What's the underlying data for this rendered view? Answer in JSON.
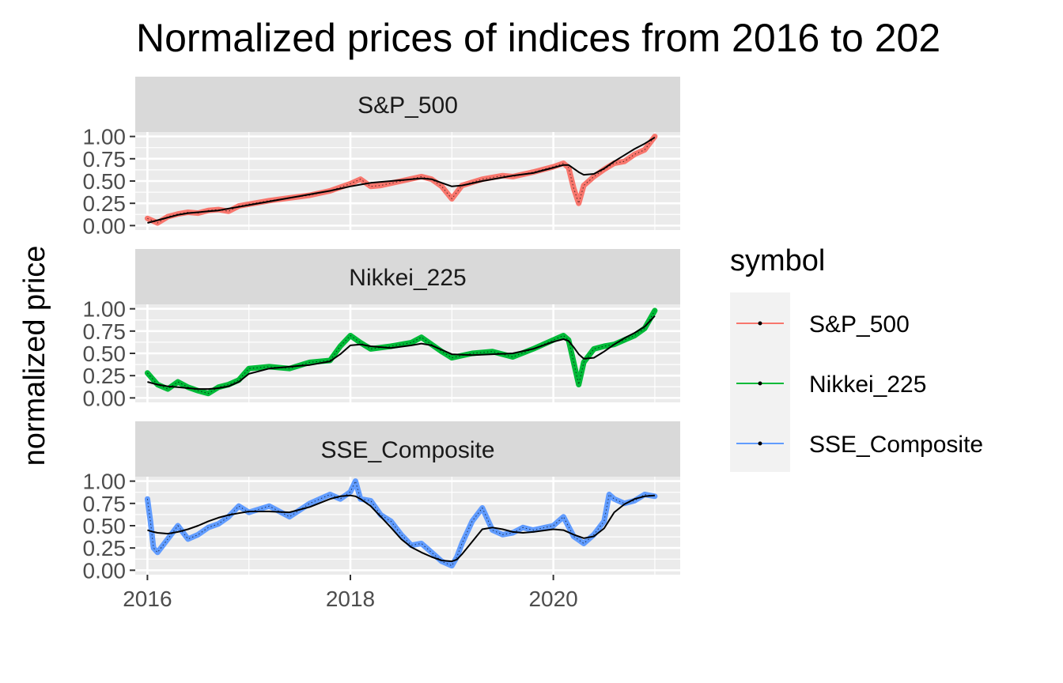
{
  "chart_data": {
    "type": "line",
    "title": "Normalized prices of indices from 2016 to 202",
    "ylabel": "normalized price",
    "xlabel": "",
    "xlim": [
      2015.88,
      2021.25
    ],
    "ylim": [
      -0.05,
      1.05
    ],
    "x_ticks": [
      2016,
      2018,
      2020
    ],
    "x_tick_labels": [
      "2016",
      "2018",
      "2020"
    ],
    "y_ticks": [
      0,
      0.25,
      0.5,
      0.75,
      1.0
    ],
    "y_tick_labels": [
      "0.00",
      "0.25",
      "0.50",
      "0.75",
      "1.00"
    ],
    "grid": true,
    "legend": {
      "title": "symbol",
      "position": "right"
    },
    "series": [
      {
        "name": "S&P_500",
        "color": "#F8766D",
        "x": [
          2016.0,
          2016.1,
          2016.2,
          2016.3,
          2016.4,
          2016.5,
          2016.6,
          2016.7,
          2016.8,
          2016.9,
          2017.0,
          2017.2,
          2017.4,
          2017.6,
          2017.8,
          2018.0,
          2018.1,
          2018.2,
          2018.3,
          2018.5,
          2018.7,
          2018.8,
          2018.9,
          2019.0,
          2019.1,
          2019.3,
          2019.5,
          2019.6,
          2019.8,
          2020.0,
          2020.1,
          2020.15,
          2020.2,
          2020.25,
          2020.3,
          2020.4,
          2020.5,
          2020.6,
          2020.7,
          2020.8,
          2020.9,
          2021.0
        ],
        "values": [
          0.08,
          0.03,
          0.1,
          0.13,
          0.15,
          0.14,
          0.17,
          0.18,
          0.16,
          0.22,
          0.24,
          0.28,
          0.31,
          0.34,
          0.39,
          0.47,
          0.52,
          0.44,
          0.45,
          0.5,
          0.55,
          0.52,
          0.44,
          0.3,
          0.45,
          0.52,
          0.56,
          0.55,
          0.6,
          0.66,
          0.7,
          0.65,
          0.42,
          0.25,
          0.45,
          0.55,
          0.63,
          0.7,
          0.72,
          0.8,
          0.85,
          1.0
        ],
        "trend": [
          0.03,
          0.06,
          0.09,
          0.12,
          0.14,
          0.15,
          0.16,
          0.17,
          0.19,
          0.21,
          0.23,
          0.27,
          0.31,
          0.35,
          0.39,
          0.44,
          0.46,
          0.48,
          0.49,
          0.51,
          0.53,
          0.52,
          0.48,
          0.44,
          0.45,
          0.5,
          0.54,
          0.56,
          0.59,
          0.65,
          0.68,
          0.68,
          0.64,
          0.6,
          0.57,
          0.58,
          0.64,
          0.72,
          0.79,
          0.86,
          0.92,
          0.99
        ]
      },
      {
        "name": "Nikkei_225",
        "color": "#00BA38",
        "x": [
          2016.0,
          2016.1,
          2016.2,
          2016.3,
          2016.4,
          2016.5,
          2016.6,
          2016.7,
          2016.8,
          2016.9,
          2017.0,
          2017.2,
          2017.4,
          2017.6,
          2017.8,
          2017.9,
          2018.0,
          2018.1,
          2018.2,
          2018.4,
          2018.6,
          2018.7,
          2018.8,
          2018.9,
          2019.0,
          2019.2,
          2019.4,
          2019.6,
          2019.8,
          2020.0,
          2020.1,
          2020.15,
          2020.2,
          2020.25,
          2020.3,
          2020.4,
          2020.5,
          2020.6,
          2020.7,
          2020.8,
          2020.9,
          2021.0
        ],
        "values": [
          0.28,
          0.15,
          0.1,
          0.18,
          0.12,
          0.08,
          0.05,
          0.12,
          0.15,
          0.2,
          0.33,
          0.35,
          0.33,
          0.4,
          0.42,
          0.58,
          0.7,
          0.62,
          0.55,
          0.58,
          0.62,
          0.68,
          0.6,
          0.52,
          0.45,
          0.5,
          0.52,
          0.46,
          0.55,
          0.65,
          0.7,
          0.65,
          0.4,
          0.15,
          0.4,
          0.55,
          0.58,
          0.6,
          0.65,
          0.7,
          0.78,
          0.98
        ],
        "trend": [
          0.18,
          0.15,
          0.13,
          0.12,
          0.11,
          0.1,
          0.1,
          0.11,
          0.13,
          0.18,
          0.27,
          0.33,
          0.35,
          0.37,
          0.41,
          0.49,
          0.59,
          0.6,
          0.58,
          0.56,
          0.59,
          0.61,
          0.59,
          0.54,
          0.49,
          0.48,
          0.49,
          0.5,
          0.55,
          0.63,
          0.66,
          0.64,
          0.57,
          0.49,
          0.44,
          0.45,
          0.52,
          0.6,
          0.67,
          0.73,
          0.8,
          0.92
        ]
      },
      {
        "name": "SSE_Composite",
        "color": "#619CFF",
        "x": [
          2016.0,
          2016.03,
          2016.06,
          2016.1,
          2016.2,
          2016.3,
          2016.4,
          2016.5,
          2016.6,
          2016.7,
          2016.8,
          2016.9,
          2017.0,
          2017.2,
          2017.4,
          2017.6,
          2017.8,
          2017.9,
          2018.0,
          2018.05,
          2018.1,
          2018.2,
          2018.3,
          2018.4,
          2018.5,
          2018.6,
          2018.7,
          2018.8,
          2018.9,
          2019.0,
          2019.05,
          2019.1,
          2019.2,
          2019.3,
          2019.4,
          2019.5,
          2019.6,
          2019.7,
          2019.8,
          2020.0,
          2020.1,
          2020.2,
          2020.3,
          2020.4,
          2020.5,
          2020.55,
          2020.6,
          2020.7,
          2020.8,
          2020.9,
          2021.0
        ],
        "values": [
          0.8,
          0.55,
          0.25,
          0.2,
          0.35,
          0.5,
          0.35,
          0.4,
          0.48,
          0.52,
          0.6,
          0.72,
          0.65,
          0.72,
          0.6,
          0.75,
          0.85,
          0.8,
          0.88,
          1.0,
          0.8,
          0.78,
          0.62,
          0.55,
          0.4,
          0.28,
          0.3,
          0.2,
          0.1,
          0.05,
          0.15,
          0.3,
          0.55,
          0.7,
          0.45,
          0.4,
          0.42,
          0.48,
          0.45,
          0.5,
          0.6,
          0.38,
          0.3,
          0.4,
          0.55,
          0.85,
          0.8,
          0.75,
          0.78,
          0.85,
          0.83
        ],
        "trend": [
          0.45,
          0.44,
          0.43,
          0.42,
          0.41,
          0.43,
          0.46,
          0.5,
          0.55,
          0.59,
          0.62,
          0.64,
          0.66,
          0.66,
          0.65,
          0.71,
          0.8,
          0.83,
          0.84,
          0.83,
          0.8,
          0.72,
          0.6,
          0.48,
          0.35,
          0.26,
          0.2,
          0.15,
          0.11,
          0.1,
          0.12,
          0.18,
          0.32,
          0.46,
          0.48,
          0.46,
          0.43,
          0.42,
          0.43,
          0.46,
          0.45,
          0.4,
          0.36,
          0.38,
          0.47,
          0.56,
          0.65,
          0.74,
          0.8,
          0.83,
          0.84
        ]
      }
    ]
  }
}
